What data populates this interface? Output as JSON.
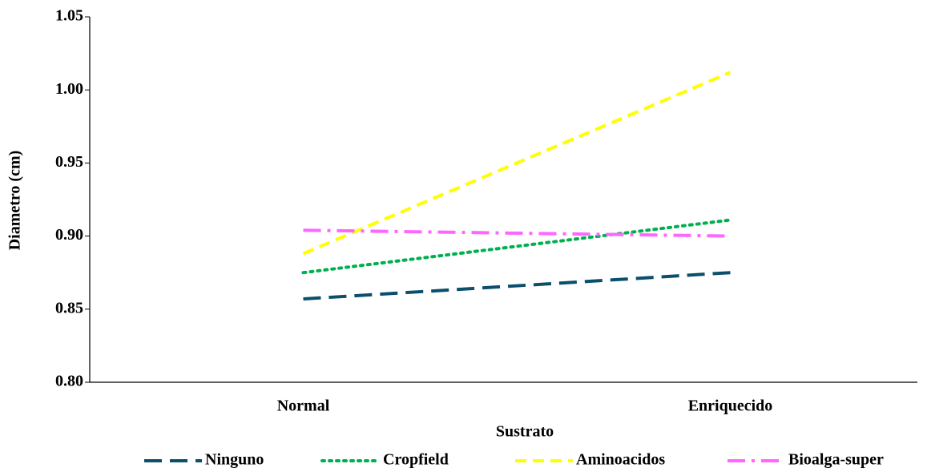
{
  "chart_data": {
    "type": "line",
    "x_label": "Sustrato",
    "y_label": "Diametro (cm)",
    "categories": [
      "Normal",
      "Enriquecido"
    ],
    "series": [
      {
        "name": "Ninguno",
        "color": "#0b4f6c",
        "dash": "long-dash",
        "values": [
          0.857,
          0.875
        ]
      },
      {
        "name": "Cropfield",
        "color": "#00b050",
        "dash": "dot",
        "values": [
          0.875,
          0.911
        ]
      },
      {
        "name": "Aminoacidos",
        "color": "#ffff00",
        "dash": "dash",
        "values": [
          0.888,
          1.012
        ]
      },
      {
        "name": "Bioalga-super",
        "color": "#ff66ff",
        "dash": "dash-dot",
        "values": [
          0.904,
          0.9
        ]
      }
    ],
    "ylim": [
      0.8,
      1.05
    ],
    "yticks": [
      {
        "value": 0.8,
        "label": "0.80"
      },
      {
        "value": 0.85,
        "label": "0.85"
      },
      {
        "value": 0.9,
        "label": "0.90"
      },
      {
        "value": 0.95,
        "label": "0.95"
      },
      {
        "value": 1.0,
        "label": "1.00"
      },
      {
        "value": 1.05,
        "label": "1.05"
      }
    ],
    "grid": false,
    "legend": "bottom"
  }
}
